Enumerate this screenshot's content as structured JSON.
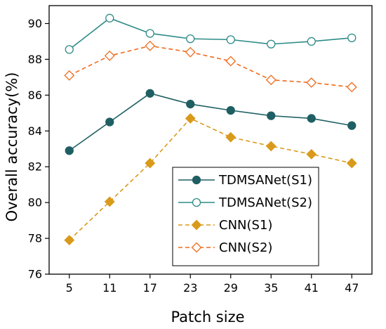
{
  "chart_data": {
    "type": "line",
    "title": "",
    "xlabel": "Patch size",
    "ylabel": "Overall accuracy(%)",
    "categories": [
      "5",
      "11",
      "17",
      "23",
      "29",
      "35",
      "41",
      "47"
    ],
    "ylim": [
      76,
      91
    ],
    "yticks": [
      76,
      78,
      80,
      82,
      84,
      86,
      88,
      90
    ],
    "grid": false,
    "legend_position": "lower-right",
    "series": [
      {
        "name": "TDMSANet(S1)",
        "values": [
          82.9,
          84.5,
          86.1,
          85.5,
          85.15,
          84.85,
          84.7,
          84.3
        ],
        "color": "#1f5f63",
        "line": "solid",
        "marker": "circle-filled"
      },
      {
        "name": "TDMSANet(S2)",
        "values": [
          88.55,
          90.3,
          89.45,
          89.15,
          89.1,
          88.85,
          89.0,
          89.2
        ],
        "color": "#2e8b87",
        "line": "solid",
        "marker": "circle-open"
      },
      {
        "name": "CNN(S1)",
        "values": [
          77.9,
          80.05,
          82.2,
          84.7,
          83.65,
          83.15,
          82.7,
          82.2
        ],
        "color": "#d99a1b",
        "line": "dashed",
        "marker": "diamond-filled"
      },
      {
        "name": "CNN(S2)",
        "values": [
          87.1,
          88.2,
          88.75,
          88.4,
          87.9,
          86.85,
          86.7,
          86.45
        ],
        "color": "#f06a1c",
        "line": "dashed",
        "marker": "diamond-open"
      }
    ]
  }
}
